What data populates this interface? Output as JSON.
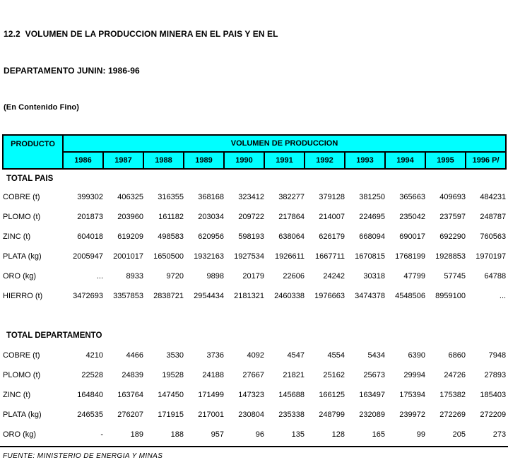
{
  "title": {
    "line1": "12.2  VOLUMEN DE LA PRODUCCION MINERA EN EL PAIS Y EN EL",
    "line2": "DEPARTAMENTO JUNIN: 1986-96",
    "line3": "(En Contenido Fino)"
  },
  "table": {
    "product_header": "PRODUCTO",
    "volume_header": "VOLUMEN DE PRODUCCION",
    "years": [
      "1986",
      "1987",
      "1988",
      "1989",
      "1990",
      "1991",
      "1992",
      "1993",
      "1994",
      "1995",
      "1996 P/"
    ],
    "sections": [
      {
        "heading": "TOTAL PAIS",
        "rows": [
          {
            "label": "COBRE (t)",
            "values": [
              "399302",
              "406325",
              "316355",
              "368168",
              "323412",
              "382277",
              "379128",
              "381250",
              "365663",
              "409693",
              "484231"
            ]
          },
          {
            "label": "PLOMO (t)",
            "values": [
              "201873",
              "203960",
              "161182",
              "203034",
              "209722",
              "217864",
              "214007",
              "224695",
              "235042",
              "237597",
              "248787"
            ]
          },
          {
            "label": "ZINC (t)",
            "values": [
              "604018",
              "619209",
              "498583",
              "620956",
              "598193",
              "638064",
              "626179",
              "668094",
              "690017",
              "692290",
              "760563"
            ]
          },
          {
            "label": "PLATA (kg)",
            "values": [
              "2005947",
              "2001017",
              "1650500",
              "1932163",
              "1927534",
              "1926611",
              "1667711",
              "1670815",
              "1768199",
              "1928853",
              "1970197"
            ]
          },
          {
            "label": "ORO (kg)",
            "values": [
              "...",
              "8933",
              "9720",
              "9898",
              "20179",
              "22606",
              "24242",
              "30318",
              "47799",
              "57745",
              "64788"
            ]
          },
          {
            "label": "HIERRO (t)",
            "values": [
              "3472693",
              "3357853",
              "2838721",
              "2954434",
              "2181321",
              "2460338",
              "1976663",
              "3474378",
              "4548506",
              "8959100",
              "..."
            ]
          }
        ]
      },
      {
        "heading": "TOTAL DEPARTAMENTO",
        "rows": [
          {
            "label": "COBRE (t)",
            "values": [
              "4210",
              "4466",
              "3530",
              "3736",
              "4092",
              "4547",
              "4554",
              "5434",
              "6390",
              "6860",
              "7948"
            ]
          },
          {
            "label": "PLOMO (t)",
            "values": [
              "22528",
              "24839",
              "19528",
              "24188",
              "27667",
              "21821",
              "25162",
              "25673",
              "29994",
              "24726",
              "27893"
            ]
          },
          {
            "label": "ZINC (t)",
            "values": [
              "164840",
              "163764",
              "147450",
              "171499",
              "147323",
              "145688",
              "166125",
              "163497",
              "175394",
              "175382",
              "185403"
            ]
          },
          {
            "label": "PLATA (kg)",
            "values": [
              "246535",
              "276207",
              "171915",
              "217001",
              "230804",
              "235338",
              "248799",
              "232089",
              "239972",
              "272269",
              "272209"
            ]
          },
          {
            "label": "ORO (kg)",
            "values": [
              "-",
              "189",
              "188",
              "957",
              "96",
              "135",
              "128",
              "165",
              "99",
              "205",
              "273"
            ]
          }
        ]
      }
    ]
  },
  "footer": {
    "fuente": "FUENTE: MINISTERIO DE ENERGIA Y MINAS"
  },
  "colors": {
    "header_bg": "#00FFFF",
    "border": "#000000",
    "text": "#000000",
    "background": "#FFFFFF"
  }
}
